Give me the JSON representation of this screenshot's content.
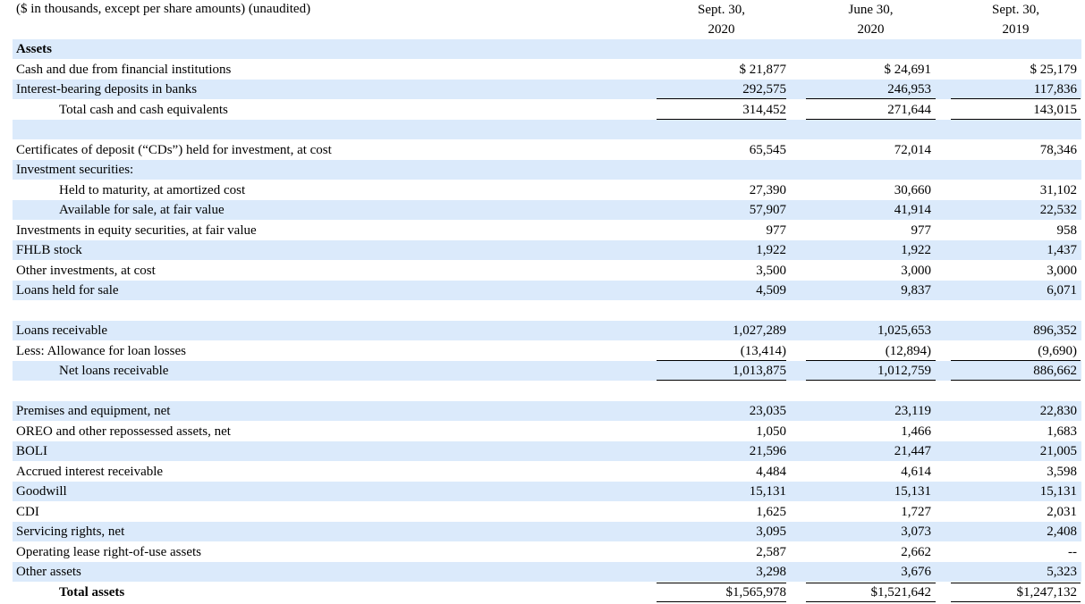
{
  "header": {
    "caption": "($ in thousands, except per share amounts) (unaudited)",
    "columns": [
      {
        "line1": "Sept. 30,",
        "line2": "2020"
      },
      {
        "line1": "June 30,",
        "line2": "2020"
      },
      {
        "line1": "Sept. 30,",
        "line2": "2019"
      }
    ]
  },
  "rows": [
    {
      "label": "Assets",
      "bold": true,
      "values": [
        "",
        "",
        ""
      ]
    },
    {
      "label": "Cash and due from financial institutions",
      "values": [
        "$ 21,877",
        "$ 24,691",
        "$ 25,179"
      ]
    },
    {
      "label": "Interest-bearing deposits in banks",
      "values": [
        "292,575",
        "246,953",
        "117,836"
      ]
    },
    {
      "label": "Total cash and cash equivalents",
      "indent": true,
      "values": [
        "314,452",
        "271,644",
        "143,015"
      ]
    },
    {
      "label": "",
      "values": [
        "",
        "",
        ""
      ]
    },
    {
      "label": "Certificates of deposit (“CDs”) held for investment, at cost",
      "values": [
        "65,545",
        "72,014",
        "78,346"
      ]
    },
    {
      "label": "Investment securities:",
      "values": [
        "",
        "",
        ""
      ]
    },
    {
      "label": "Held to maturity, at amortized cost",
      "indent": true,
      "values": [
        "27,390",
        "30,660",
        "31,102"
      ]
    },
    {
      "label": "Available for sale, at fair value",
      "indent": true,
      "values": [
        "57,907",
        "41,914",
        "22,532"
      ]
    },
    {
      "label": "Investments in equity securities, at fair value",
      "values": [
        "977",
        "977",
        "958"
      ]
    },
    {
      "label": "FHLB stock",
      "values": [
        "1,922",
        "1,922",
        "1,437"
      ]
    },
    {
      "label": "Other investments, at cost",
      "values": [
        "3,500",
        "3,000",
        "3,000"
      ]
    },
    {
      "label": "Loans held for sale",
      "values": [
        "4,509",
        "9,837",
        "6,071"
      ]
    },
    {
      "label": "",
      "values": [
        "",
        "",
        ""
      ]
    },
    {
      "label": "Loans receivable",
      "values": [
        "1,027,289",
        "1,025,653",
        "896,352"
      ]
    },
    {
      "label": "Less: Allowance for loan losses",
      "values": [
        "(13,414)",
        "(12,894)",
        "(9,690)"
      ]
    },
    {
      "label": "Net loans receivable",
      "indent": true,
      "values": [
        "1,013,875",
        "1,012,759",
        "886,662"
      ]
    },
    {
      "label": "",
      "values": [
        "",
        "",
        ""
      ]
    },
    {
      "label": "Premises and equipment, net",
      "values": [
        "23,035",
        "23,119",
        "22,830"
      ]
    },
    {
      "label": "OREO and other repossessed assets, net",
      "values": [
        "1,050",
        "1,466",
        "1,683"
      ]
    },
    {
      "label": "BOLI",
      "values": [
        "21,596",
        "21,447",
        "21,005"
      ]
    },
    {
      "label": "Accrued interest receivable",
      "values": [
        "4,484",
        "4,614",
        "3,598"
      ]
    },
    {
      "label": "Goodwill",
      "values": [
        "15,131",
        "15,131",
        "15,131"
      ]
    },
    {
      "label": "CDI",
      "values": [
        "1,625",
        "1,727",
        "2,031"
      ]
    },
    {
      "label": "Servicing rights, net",
      "values": [
        "3,095",
        "3,073",
        "2,408"
      ]
    },
    {
      "label": "Operating lease right-of-use assets",
      "values": [
        "2,587",
        "2,662",
        "--"
      ]
    },
    {
      "label": "Other assets",
      "values": [
        "3,298",
        "3,676",
        "5,323"
      ]
    },
    {
      "label": "Total assets",
      "bold": true,
      "indent": true,
      "values": [
        "$1,565,978",
        "$1,521,642",
        "$1,247,132"
      ]
    }
  ]
}
